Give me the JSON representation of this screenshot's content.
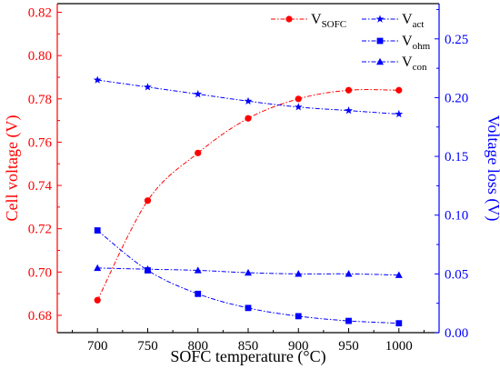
{
  "chart_data": {
    "type": "line",
    "title": "",
    "xlabel": "SOFC temperature (°C)",
    "ylabel_left": "Cell voltage (V)",
    "ylabel_right": "Voltage loss (V)",
    "x": [
      700,
      750,
      800,
      850,
      900,
      950,
      1000
    ],
    "x_ticks": [
      "700",
      "750",
      "800",
      "850",
      "900",
      "950",
      "1000"
    ],
    "xlim": [
      660,
      1040
    ],
    "ylim_left": [
      0.672,
      0.824
    ],
    "ylim_right": [
      0.0,
      0.28
    ],
    "y_ticks_left": [
      "0.68",
      "0.70",
      "0.72",
      "0.74",
      "0.76",
      "0.78",
      "0.80",
      "0.82"
    ],
    "y_ticks_right": [
      "0.00",
      "0.05",
      "0.10",
      "0.15",
      "0.20",
      "0.25"
    ],
    "grid": false,
    "legend_position": "top-right",
    "colors": {
      "sofc": "#ff0000",
      "loss": "#0000ff",
      "axis": "#000000"
    },
    "series": [
      {
        "name": "V",
        "subscript": "SOFC",
        "axis": "left",
        "marker": "circle",
        "color": "#ff0000",
        "values": [
          0.687,
          0.733,
          0.755,
          0.771,
          0.78,
          0.784,
          0.784
        ]
      },
      {
        "name": "V",
        "subscript": "act",
        "axis": "right",
        "marker": "star",
        "color": "#0000ff",
        "values": [
          0.215,
          0.209,
          0.203,
          0.197,
          0.192,
          0.189,
          0.186
        ]
      },
      {
        "name": "V",
        "subscript": "ohm",
        "axis": "right",
        "marker": "square",
        "color": "#0000ff",
        "values": [
          0.087,
          0.053,
          0.033,
          0.021,
          0.014,
          0.01,
          0.008
        ]
      },
      {
        "name": "V",
        "subscript": "con",
        "axis": "right",
        "marker": "triangle",
        "color": "#0000ff",
        "values": [
          0.055,
          0.054,
          0.053,
          0.051,
          0.05,
          0.05,
          0.049
        ]
      }
    ]
  }
}
